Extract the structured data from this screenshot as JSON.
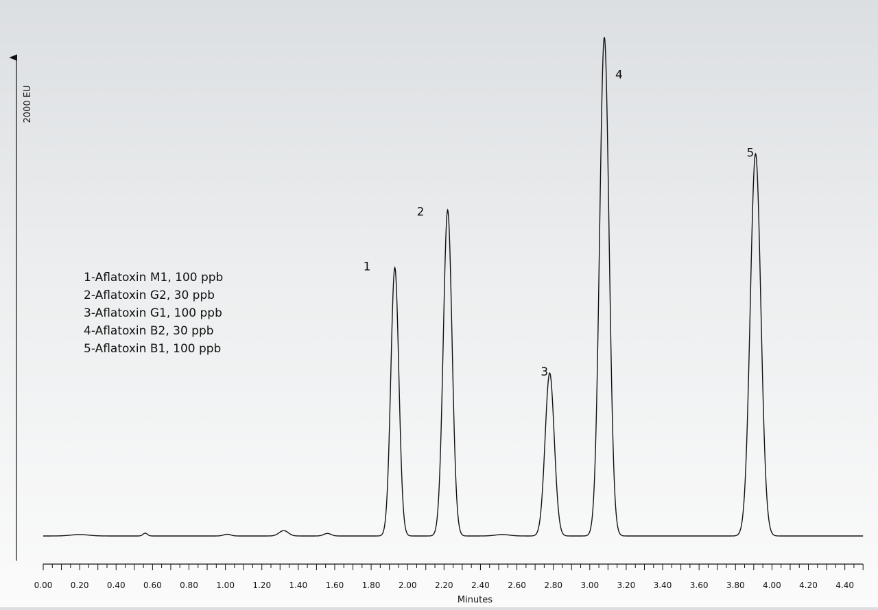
{
  "chart_data": {
    "type": "line",
    "xlabel": "Minutes",
    "ylabel": "2000 EU",
    "xlim": [
      0.0,
      4.5
    ],
    "x_ticks": [
      "0.00",
      "0.20",
      "0.40",
      "0.60",
      "0.80",
      "1.00",
      "1.20",
      "1.40",
      "1.60",
      "1.80",
      "2.00",
      "2.20",
      "2.40",
      "2.60",
      "2.80",
      "3.00",
      "3.20",
      "3.40",
      "3.60",
      "3.80",
      "4.00",
      "4.20",
      "4.40"
    ],
    "y_scale_bar_eu": 2000,
    "grid": false,
    "legend": {
      "placement": "left",
      "items": [
        "1-Aflatoxin M1, 100 ppb",
        "2-Aflatoxin G2, 30 ppb",
        "3-Aflatoxin G1, 100 ppb",
        "4-Aflatoxin B2, 30 ppb",
        "5-Aflatoxin B1, 100 ppb"
      ]
    },
    "peaks": [
      {
        "label": "1",
        "retention_time": 1.93,
        "height_eu": 1910,
        "width_min": 0.022
      },
      {
        "label": "2",
        "retention_time": 2.22,
        "height_eu": 2320,
        "width_min": 0.024
      },
      {
        "label": "3",
        "retention_time": 2.78,
        "height_eu": 1160,
        "width_min": 0.025
      },
      {
        "label": "4",
        "retention_time": 3.08,
        "height_eu": 3550,
        "width_min": 0.026
      },
      {
        "label": "5",
        "retention_time": 3.91,
        "height_eu": 2720,
        "width_min": 0.029
      }
    ],
    "baseline_bumps": [
      {
        "x": 0.2,
        "h": 10,
        "w": 0.05
      },
      {
        "x": 0.56,
        "h": 20,
        "w": 0.012
      },
      {
        "x": 1.01,
        "h": 12,
        "w": 0.02
      },
      {
        "x": 1.32,
        "h": 38,
        "w": 0.025
      },
      {
        "x": 1.56,
        "h": 18,
        "w": 0.02
      },
      {
        "x": 2.52,
        "h": 10,
        "w": 0.04
      }
    ]
  }
}
